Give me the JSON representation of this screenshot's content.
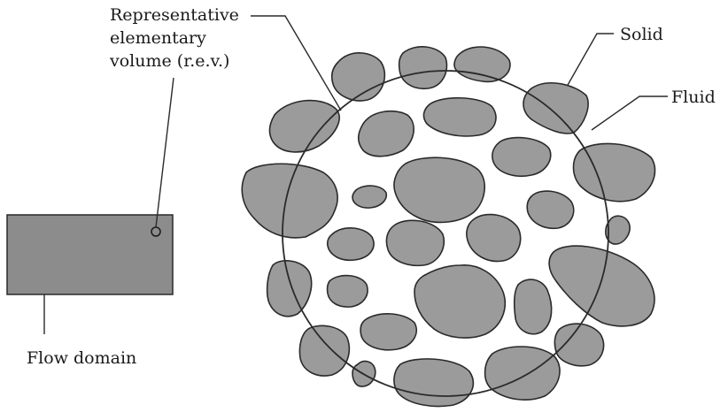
{
  "labels": {
    "rev_line1": "Representative",
    "rev_line2": "elementary",
    "rev_line3": "volume (r.e.v.)",
    "solid": "Solid",
    "fluid": "Fluid",
    "flow_domain": "Flow domain"
  },
  "colors": {
    "grain_fill": "#9b9b9b",
    "domain_fill": "#8c8c8c",
    "stroke": "#2a2a2a",
    "background": "#ffffff"
  }
}
